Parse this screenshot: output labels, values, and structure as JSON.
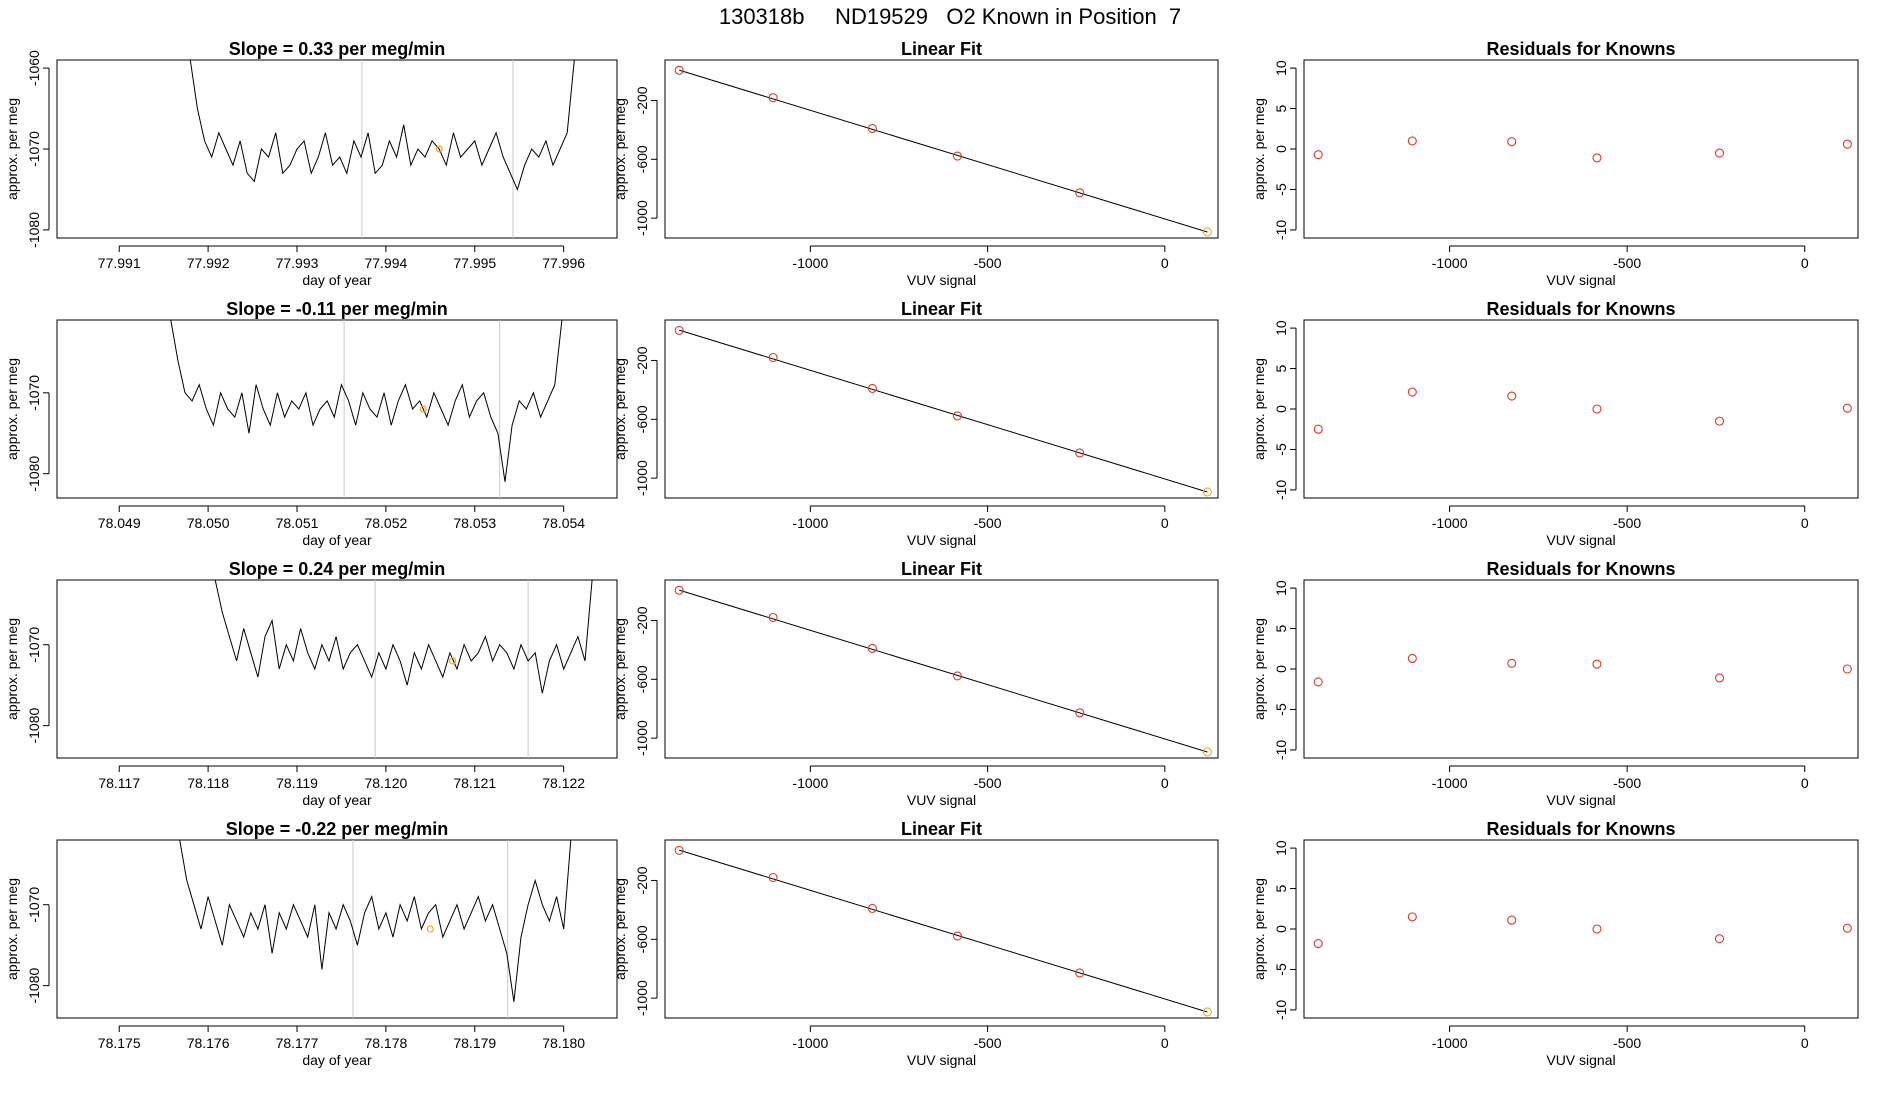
{
  "figure": {
    "title": "130318b     ND19529   O2 Known in Position  7",
    "colors": {
      "trace": "#000000",
      "fit_line": "#000000",
      "points": "#d93a2b",
      "highlight": "#f5a623",
      "marker_line": "#c8c8c8"
    }
  },
  "chart_data": [
    {
      "type": "line",
      "row": 0,
      "column": "timeseries",
      "title": "Slope =  0.33  per meg/min",
      "xlabel": "day of year",
      "ylabel": "approx. per meg",
      "xlim": [
        77.9903,
        77.9966
      ],
      "ylim": [
        -1081,
        -1059
      ],
      "xticks": [
        77.991,
        77.992,
        77.993,
        77.994,
        77.995,
        77.996
      ],
      "xtick_labels": [
        "77.991",
        "77.992",
        "77.993",
        "77.994",
        "77.995",
        "77.996"
      ],
      "yticks": [
        -1080,
        -1070,
        -1060
      ],
      "ytick_labels": [
        "-1080",
        "-1070",
        "-1060"
      ],
      "vlines": [
        77.99373,
        77.99543
      ],
      "highlight": {
        "x": 77.9946,
        "y": -1070
      },
      "x": [
        77.9918,
        77.99188,
        77.99196,
        77.99204,
        77.99212,
        77.9922,
        77.99228,
        77.99236,
        77.99244,
        77.99252,
        77.9926,
        77.99268,
        77.99276,
        77.99284,
        77.99292,
        77.993,
        77.99308,
        77.99316,
        77.99324,
        77.99332,
        77.9934,
        77.99348,
        77.99356,
        77.99364,
        77.99372,
        77.9938,
        77.99388,
        77.99396,
        77.99404,
        77.99412,
        77.9942,
        77.99428,
        77.99436,
        77.99444,
        77.99452,
        77.9946,
        77.99468,
        77.99476,
        77.99484,
        77.99492,
        77.995,
        77.99508,
        77.99516,
        77.99524,
        77.99532,
        77.9954,
        77.99548,
        77.99556,
        77.99564,
        77.99572,
        77.9958,
        77.99588,
        77.99596,
        77.99604,
        77.99612
      ],
      "y": [
        -1059,
        -1065,
        -1069,
        -1071,
        -1068,
        -1070,
        -1072,
        -1069,
        -1073,
        -1074,
        -1070,
        -1071,
        -1068,
        -1073,
        -1072,
        -1070,
        -1069,
        -1073,
        -1071,
        -1068,
        -1072,
        -1071,
        -1073,
        -1069,
        -1071,
        -1068,
        -1073,
        -1072,
        -1069,
        -1071,
        -1067,
        -1072,
        -1070,
        -1071,
        -1069,
        -1070,
        -1072,
        -1068,
        -1071,
        -1070,
        -1069,
        -1072,
        -1070,
        -1068,
        -1071,
        -1073,
        -1075,
        -1072,
        -1070,
        -1071,
        -1069,
        -1072,
        -1070,
        -1068,
        -1059
      ]
    },
    {
      "type": "line",
      "row": 0,
      "column": "fit",
      "title": "Linear Fit",
      "xlabel": "VUV signal",
      "ylabel": "approx. per meg",
      "xlim": [
        -1410,
        150
      ],
      "ylim": [
        -1135,
        75
      ],
      "xticks": [
        -1000,
        -500,
        0
      ],
      "xtick_labels": [
        "-1000",
        "-500",
        "0"
      ],
      "yticks": [
        -1000,
        -600,
        -200
      ],
      "ytick_labels": [
        "-1000",
        "-600",
        "-200"
      ],
      "line": {
        "x": [
          -1370,
          120
        ],
        "y": [
          6,
          -1094
        ]
      },
      "points": {
        "x": [
          -1370,
          -1105,
          -825,
          -585,
          -240,
          120
        ],
        "y": [
          5,
          -181,
          -391,
          -578,
          -828,
          -1094
        ]
      },
      "highlight_index": 5
    },
    {
      "type": "scatter",
      "row": 0,
      "column": "residuals",
      "title": "Residuals for Knowns",
      "xlabel": "VUV signal",
      "ylabel": "approx. per meg",
      "xlim": [
        -1410,
        150
      ],
      "ylim": [
        -11,
        11
      ],
      "xticks": [
        -1000,
        -500,
        0
      ],
      "xtick_labels": [
        "-1000",
        "-500",
        "0"
      ],
      "yticks": [
        -10,
        -5,
        0,
        5,
        10
      ],
      "ytick_labels": [
        "-10",
        "-5",
        "0",
        "5",
        "10"
      ],
      "x": [
        -1370,
        -1105,
        -825,
        -585,
        -240,
        120
      ],
      "y": [
        -0.7,
        1.0,
        0.9,
        -1.1,
        -0.5,
        0.6
      ]
    },
    {
      "type": "line",
      "row": 1,
      "column": "timeseries",
      "title": "Slope =  -0.11  per meg/min",
      "xlabel": "day of year",
      "ylabel": "approx. per meg",
      "xlim": [
        78.0483,
        78.0546
      ],
      "ylim": [
        -1083,
        -1061
      ],
      "xticks": [
        78.049,
        78.05,
        78.051,
        78.052,
        78.053,
        78.054
      ],
      "xtick_labels": [
        "78.049",
        "78.050",
        "78.051",
        "78.052",
        "78.053",
        "78.054"
      ],
      "yticks": [
        -1080,
        -1070
      ],
      "ytick_labels": [
        "-1080",
        "-1070"
      ],
      "vlines": [
        78.05153,
        78.05328
      ],
      "highlight": {
        "x": 78.05242,
        "y": -1072
      },
      "x": [
        78.04958,
        78.04966,
        78.04974,
        78.04982,
        78.0499,
        78.04998,
        78.05006,
        78.05014,
        78.05022,
        78.0503,
        78.05038,
        78.05046,
        78.05054,
        78.05062,
        78.0507,
        78.05078,
        78.05086,
        78.05094,
        78.05102,
        78.0511,
        78.05118,
        78.05126,
        78.05134,
        78.05142,
        78.0515,
        78.05158,
        78.05166,
        78.05174,
        78.05182,
        78.0519,
        78.05198,
        78.05206,
        78.05214,
        78.05222,
        78.0523,
        78.05238,
        78.05246,
        78.05254,
        78.05262,
        78.0527,
        78.05278,
        78.05286,
        78.05294,
        78.05302,
        78.0531,
        78.05318,
        78.05326,
        78.05334,
        78.05342,
        78.0535,
        78.05358,
        78.05366,
        78.05374,
        78.05382,
        78.0539,
        78.05398
      ],
      "y": [
        -1061,
        -1066,
        -1070,
        -1071,
        -1069,
        -1072,
        -1074,
        -1070,
        -1072,
        -1073,
        -1070,
        -1075,
        -1069,
        -1072,
        -1074,
        -1070,
        -1073,
        -1071,
        -1072,
        -1070,
        -1074,
        -1072,
        -1071,
        -1073,
        -1069,
        -1071,
        -1074,
        -1070,
        -1072,
        -1073,
        -1070,
        -1074,
        -1071,
        -1069,
        -1072,
        -1071,
        -1073,
        -1070,
        -1072,
        -1074,
        -1071,
        -1069,
        -1073,
        -1071,
        -1070,
        -1073,
        -1075,
        -1081,
        -1074,
        -1071,
        -1072,
        -1070,
        -1073,
        -1071,
        -1069,
        -1061
      ]
    },
    {
      "type": "line",
      "row": 1,
      "column": "fit",
      "title": "Linear Fit",
      "xlabel": "VUV signal",
      "ylabel": "approx. per meg",
      "xlim": [
        -1410,
        150
      ],
      "ylim": [
        -1135,
        75
      ],
      "xticks": [
        -1000,
        -500,
        0
      ],
      "xtick_labels": [
        "-1000",
        "-500",
        "0"
      ],
      "yticks": [
        -1000,
        -600,
        -200
      ],
      "ytick_labels": [
        "-1000",
        "-600",
        "-200"
      ],
      "line": {
        "x": [
          -1370,
          120
        ],
        "y": [
          6,
          -1094
        ]
      },
      "points": {
        "x": [
          -1370,
          -1105,
          -825,
          -585,
          -240,
          120
        ],
        "y": [
          4,
          -180,
          -390,
          -577,
          -829,
          -1094
        ]
      },
      "highlight_index": 5
    },
    {
      "type": "scatter",
      "row": 1,
      "column": "residuals",
      "title": "Residuals for Knowns",
      "xlabel": "VUV signal",
      "ylabel": "approx. per meg",
      "xlim": [
        -1410,
        150
      ],
      "ylim": [
        -11,
        11
      ],
      "xticks": [
        -1000,
        -500,
        0
      ],
      "xtick_labels": [
        "-1000",
        "-500",
        "0"
      ],
      "yticks": [
        -10,
        -5,
        0,
        5,
        10
      ],
      "ytick_labels": [
        "-10",
        "-5",
        "0",
        "5",
        "10"
      ],
      "x": [
        -1370,
        -1105,
        -825,
        -585,
        -240,
        120
      ],
      "y": [
        -2.5,
        2.1,
        1.6,
        0.0,
        -1.5,
        0.1
      ]
    },
    {
      "type": "line",
      "row": 2,
      "column": "timeseries",
      "title": "Slope =  0.24  per meg/min",
      "xlabel": "day of year",
      "ylabel": "approx. per meg",
      "xlim": [
        78.1163,
        78.1226
      ],
      "ylim": [
        -1084,
        -1062
      ],
      "xticks": [
        78.117,
        78.118,
        78.119,
        78.12,
        78.121,
        78.122
      ],
      "xtick_labels": [
        "78.117",
        "78.118",
        "78.119",
        "78.120",
        "78.121",
        "78.122"
      ],
      "yticks": [
        -1080,
        -1070
      ],
      "ytick_labels": [
        "-1080",
        "-1070"
      ],
      "vlines": [
        78.11988,
        78.1216
      ],
      "highlight": {
        "x": 78.12075,
        "y": -1072
      },
      "x": [
        78.11808,
        78.11816,
        78.11824,
        78.11832,
        78.1184,
        78.11848,
        78.11856,
        78.11864,
        78.11872,
        78.1188,
        78.11888,
        78.11896,
        78.11904,
        78.11912,
        78.1192,
        78.11928,
        78.11936,
        78.11944,
        78.11952,
        78.1196,
        78.11968,
        78.11976,
        78.11984,
        78.11992,
        78.12,
        78.12008,
        78.12016,
        78.12024,
        78.12032,
        78.1204,
        78.12048,
        78.12056,
        78.12064,
        78.12072,
        78.1208,
        78.12088,
        78.12096,
        78.12104,
        78.12112,
        78.1212,
        78.12128,
        78.12136,
        78.12144,
        78.12152,
        78.1216,
        78.12168,
        78.12176,
        78.12184,
        78.12192,
        78.122,
        78.12208,
        78.12216,
        78.12224,
        78.12232
      ],
      "y": [
        -1062,
        -1066,
        -1069,
        -1072,
        -1068,
        -1071,
        -1074,
        -1069,
        -1067,
        -1073,
        -1070,
        -1072,
        -1068,
        -1071,
        -1073,
        -1070,
        -1072,
        -1069,
        -1073,
        -1071,
        -1070,
        -1072,
        -1074,
        -1071,
        -1073,
        -1070,
        -1072,
        -1075,
        -1071,
        -1073,
        -1070,
        -1072,
        -1074,
        -1071,
        -1073,
        -1070,
        -1072,
        -1071,
        -1069,
        -1072,
        -1070,
        -1071,
        -1073,
        -1070,
        -1072,
        -1071,
        -1076,
        -1072,
        -1070,
        -1073,
        -1071,
        -1069,
        -1072,
        -1062
      ]
    },
    {
      "type": "line",
      "row": 2,
      "column": "fit",
      "title": "Linear Fit",
      "xlabel": "VUV signal",
      "ylabel": "approx. per meg",
      "xlim": [
        -1410,
        150
      ],
      "ylim": [
        -1135,
        75
      ],
      "xticks": [
        -1000,
        -500,
        0
      ],
      "xtick_labels": [
        "-1000",
        "-500",
        "0"
      ],
      "yticks": [
        -1000,
        -600,
        -200
      ],
      "ytick_labels": [
        "-1000",
        "-600",
        "-200"
      ],
      "line": {
        "x": [
          -1370,
          120
        ],
        "y": [
          6,
          -1094
        ]
      },
      "points": {
        "x": [
          -1370,
          -1105,
          -825,
          -585,
          -240,
          120
        ],
        "y": [
          5,
          -180,
          -390,
          -577,
          -828,
          -1094
        ]
      },
      "highlight_index": 5
    },
    {
      "type": "scatter",
      "row": 2,
      "column": "residuals",
      "title": "Residuals for Knowns",
      "xlabel": "VUV signal",
      "ylabel": "approx. per meg",
      "xlim": [
        -1410,
        150
      ],
      "ylim": [
        -11,
        11
      ],
      "xticks": [
        -1000,
        -500,
        0
      ],
      "xtick_labels": [
        "-1000",
        "-500",
        "0"
      ],
      "yticks": [
        -10,
        -5,
        0,
        5,
        10
      ],
      "ytick_labels": [
        "-10",
        "-5",
        "0",
        "5",
        "10"
      ],
      "x": [
        -1370,
        -1105,
        -825,
        -585,
        -240,
        120
      ],
      "y": [
        -1.6,
        1.3,
        0.7,
        0.6,
        -1.1,
        0.0
      ]
    },
    {
      "type": "line",
      "row": 3,
      "column": "timeseries",
      "title": "Slope =  -0.22  per meg/min",
      "xlabel": "day of year",
      "ylabel": "approx. per meg",
      "xlim": [
        78.1743,
        78.1806
      ],
      "ylim": [
        -1084,
        -1062
      ],
      "xticks": [
        78.175,
        78.176,
        78.177,
        78.178,
        78.179,
        78.18
      ],
      "xtick_labels": [
        "78.175",
        "78.176",
        "78.177",
        "78.178",
        "78.179",
        "78.180"
      ],
      "yticks": [
        -1080,
        -1070
      ],
      "ytick_labels": [
        "-1080",
        "-1070"
      ],
      "vlines": [
        78.17763,
        78.17937
      ],
      "highlight": {
        "x": 78.1785,
        "y": -1073
      },
      "x": [
        78.17568,
        78.17576,
        78.17584,
        78.17592,
        78.176,
        78.17608,
        78.17616,
        78.17624,
        78.17632,
        78.1764,
        78.17648,
        78.17656,
        78.17664,
        78.17672,
        78.1768,
        78.17688,
        78.17696,
        78.17704,
        78.17712,
        78.1772,
        78.17728,
        78.17736,
        78.17744,
        78.17752,
        78.1776,
        78.17768,
        78.17776,
        78.17784,
        78.17792,
        78.178,
        78.17808,
        78.17816,
        78.17824,
        78.17832,
        78.1784,
        78.17848,
        78.17856,
        78.17864,
        78.17872,
        78.1788,
        78.17888,
        78.17896,
        78.17904,
        78.17912,
        78.1792,
        78.17928,
        78.17936,
        78.17944,
        78.17952,
        78.1796,
        78.17968,
        78.17976,
        78.17984,
        78.17992,
        78.18,
        78.18008
      ],
      "y": [
        -1062,
        -1067,
        -1070,
        -1073,
        -1069,
        -1072,
        -1075,
        -1070,
        -1072,
        -1074,
        -1071,
        -1073,
        -1070,
        -1076,
        -1071,
        -1073,
        -1070,
        -1072,
        -1074,
        -1070,
        -1078,
        -1071,
        -1073,
        -1070,
        -1072,
        -1075,
        -1071,
        -1069,
        -1073,
        -1071,
        -1074,
        -1070,
        -1072,
        -1069,
        -1073,
        -1071,
        -1070,
        -1074,
        -1072,
        -1070,
        -1073,
        -1071,
        -1069,
        -1072,
        -1070,
        -1073,
        -1076,
        -1082,
        -1074,
        -1070,
        -1067,
        -1070,
        -1072,
        -1069,
        -1073,
        -1062
      ]
    },
    {
      "type": "line",
      "row": 3,
      "column": "fit",
      "title": "Linear Fit",
      "xlabel": "VUV signal",
      "ylabel": "approx. per meg",
      "xlim": [
        -1410,
        150
      ],
      "ylim": [
        -1135,
        75
      ],
      "xticks": [
        -1000,
        -500,
        0
      ],
      "xtick_labels": [
        "-1000",
        "-500",
        "0"
      ],
      "yticks": [
        -1000,
        -600,
        -200
      ],
      "ytick_labels": [
        "-1000",
        "-600",
        "-200"
      ],
      "line": {
        "x": [
          -1370,
          120
        ],
        "y": [
          6,
          -1094
        ]
      },
      "points": {
        "x": [
          -1370,
          -1105,
          -825,
          -585,
          -240,
          120
        ],
        "y": [
          4,
          -180,
          -390,
          -578,
          -829,
          -1094
        ]
      },
      "highlight_index": 5
    },
    {
      "type": "scatter",
      "row": 3,
      "column": "residuals",
      "title": "Residuals for Knowns",
      "xlabel": "VUV signal",
      "ylabel": "approx. per meg",
      "xlim": [
        -1410,
        150
      ],
      "ylim": [
        -11,
        11
      ],
      "xticks": [
        -1000,
        -500,
        0
      ],
      "xtick_labels": [
        "-1000",
        "-500",
        "0"
      ],
      "yticks": [
        -10,
        -5,
        0,
        5,
        10
      ],
      "ytick_labels": [
        "-10",
        "-5",
        "0",
        "5",
        "10"
      ],
      "x": [
        -1370,
        -1105,
        -825,
        -585,
        -240,
        120
      ],
      "y": [
        -1.8,
        1.5,
        1.1,
        0.0,
        -1.2,
        0.1
      ]
    }
  ]
}
